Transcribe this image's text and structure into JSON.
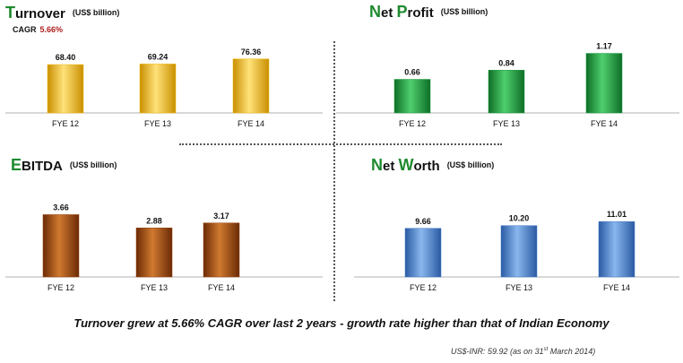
{
  "panels": [
    {
      "title_initial": "T",
      "title_rest": "urnover",
      "unit": "(US$ billion)",
      "cagr_label": "CAGR",
      "cagr_value": "5.66%"
    },
    {
      "title_initial": "N",
      "title_rest": "et ",
      "title_initial2": "P",
      "title_rest2": "rofit",
      "unit": "(US$ billion)"
    },
    {
      "title_initial": "E",
      "title_rest": "BITDA",
      "unit": "(US$ billion)"
    },
    {
      "title_initial": "N",
      "title_rest": "et ",
      "title_initial2": "W",
      "title_rest2": "orth",
      "unit": "(US$ billion)"
    }
  ],
  "chart_data": [
    {
      "type": "bar",
      "title": "Turnover",
      "ylabel": "(US$ billion)",
      "categories": [
        "FYE 12",
        "FYE 13",
        "FYE 14"
      ],
      "values": [
        68.4,
        69.24,
        76.36
      ],
      "value_labels": [
        "68.40",
        "69.24",
        "76.36"
      ],
      "ylim": [
        0,
        90
      ],
      "color": "#f2b705"
    },
    {
      "type": "bar",
      "title": "Net Profit",
      "ylabel": "(US$ billion)",
      "categories": [
        "FYE 12",
        "FYE 13",
        "FYE 14"
      ],
      "values": [
        0.66,
        0.84,
        1.17
      ],
      "value_labels": [
        "0.66",
        "0.84",
        "1.17"
      ],
      "ylim": [
        0,
        1.25
      ],
      "color": "#1a9a3c"
    },
    {
      "type": "bar",
      "title": "EBITDA",
      "ylabel": "(US$ billion)",
      "categories": [
        "FYE 12",
        "FYE 13",
        "FYE 14"
      ],
      "values": [
        3.66,
        2.88,
        3.17
      ],
      "value_labels": [
        "3.66",
        "2.88",
        "3.17"
      ],
      "ylim": [
        0,
        4.0
      ],
      "color": "#9a3f0a"
    },
    {
      "type": "bar",
      "title": "Net Worth",
      "ylabel": "(US$ billion)",
      "categories": [
        "FYE 12",
        "FYE 13",
        "FYE 14"
      ],
      "values": [
        9.66,
        10.2,
        11.01
      ],
      "value_labels": [
        "9.66",
        "10.20",
        "11.01"
      ],
      "ylim": [
        0,
        13.0
      ],
      "color": "#3f78c6"
    }
  ],
  "footer": "Turnover grew at 5.66% CAGR over last 2 years - growth rate higher than that of Indian Economy",
  "note_prefix": "US$-INR: 59.92 (as on 31",
  "note_sup": "st",
  "note_suffix": " March 2014)"
}
